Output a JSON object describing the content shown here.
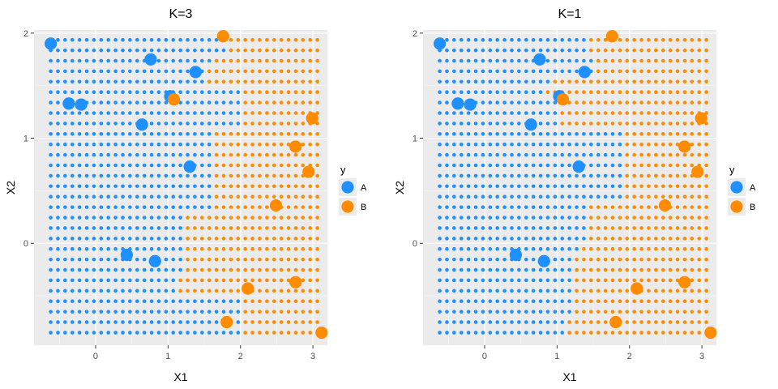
{
  "colors": {
    "A": "#1e90ff",
    "B": "#ff8c00",
    "panel": "#ebebeb",
    "grid_major": "#ffffff",
    "tick_text": "#4d4d4d"
  },
  "chart_data": [
    {
      "type": "scatter",
      "title": "K=3",
      "xlabel": "X1",
      "ylabel": "X2",
      "xlim": [
        -0.85,
        3.2
      ],
      "ylim": [
        -0.97,
        2.03
      ],
      "x_ticks": [
        0,
        1,
        2,
        3
      ],
      "y_ticks": [
        0,
        1,
        2
      ],
      "x_tick_labels": [
        "0",
        "1",
        "2",
        "3"
      ],
      "y_tick_labels": [
        "0",
        "1",
        "2"
      ],
      "grid": true,
      "legend": {
        "title": "y",
        "position": "right",
        "entries": [
          "A",
          "B"
        ]
      },
      "background_grid": {
        "x_start": -0.62,
        "x_step": 0.0995,
        "x_count": 38,
        "y_start": -0.85,
        "y_step": 0.0995,
        "y_count": 29,
        "boundary_by_row": [
          2.05,
          2.05,
          2.05,
          2.05,
          1.15,
          1.15,
          1.25,
          1.25,
          1.25,
          1.25,
          1.25,
          1.25,
          1.65,
          1.65,
          1.65,
          1.65,
          1.65,
          1.65,
          1.65,
          1.65,
          2.05,
          2.05,
          2.05,
          2.05,
          1.55,
          1.55,
          1.65,
          1.85,
          1.85
        ],
        "boundary_comment": "x value where class switches from A to B for each grid row"
      },
      "series": [
        {
          "name": "A",
          "points": [
            [
              -0.62,
              1.9
            ],
            [
              -0.37,
              1.33
            ],
            [
              -0.2,
              1.32
            ],
            [
              0.64,
              1.13
            ],
            [
              0.76,
              1.75
            ],
            [
              1.03,
              1.4
            ],
            [
              1.38,
              1.63
            ],
            [
              1.3,
              0.73
            ],
            [
              0.43,
              -0.11
            ],
            [
              0.82,
              -0.17
            ]
          ]
        },
        {
          "name": "B",
          "points": [
            [
              1.76,
              1.97
            ],
            [
              1.08,
              1.37
            ],
            [
              2.99,
              1.19
            ],
            [
              2.76,
              0.92
            ],
            [
              2.94,
              0.68
            ],
            [
              2.49,
              0.36
            ],
            [
              2.76,
              -0.37
            ],
            [
              2.1,
              -0.43
            ],
            [
              1.81,
              -0.75
            ],
            [
              3.12,
              -0.85
            ]
          ]
        }
      ]
    },
    {
      "type": "scatter",
      "title": "K=1",
      "xlabel": "X1",
      "ylabel": "X2",
      "xlim": [
        -0.85,
        3.2
      ],
      "ylim": [
        -0.97,
        2.03
      ],
      "x_ticks": [
        0,
        1,
        2,
        3
      ],
      "y_ticks": [
        0,
        1,
        2
      ],
      "x_tick_labels": [
        "0",
        "1",
        "2",
        "3"
      ],
      "y_tick_labels": [
        "0",
        "1",
        "2"
      ],
      "grid": true,
      "legend": {
        "title": "y",
        "position": "right",
        "entries": [
          "A",
          "B"
        ]
      },
      "background_grid": {
        "x_start": -0.62,
        "x_step": 0.0995,
        "x_count": 38,
        "y_start": -0.85,
        "y_step": 0.0995,
        "y_count": 29,
        "boundary_by_row": [
          1.15,
          1.15,
          1.25,
          1.25,
          1.25,
          1.25,
          1.25,
          1.25,
          1.35,
          1.45,
          1.45,
          1.45,
          1.45,
          1.95,
          1.95,
          1.95,
          1.95,
          1.95,
          1.95,
          1.95,
          1.0,
          1.0,
          1.0,
          0.8,
          0.9,
          1.55,
          1.55,
          1.45,
          1.45
        ],
        "boundary_comment": "x value where class switches from A to B for each grid row"
      },
      "series": [
        {
          "name": "A",
          "points": [
            [
              -0.62,
              1.9
            ],
            [
              -0.37,
              1.33
            ],
            [
              -0.2,
              1.32
            ],
            [
              0.64,
              1.13
            ],
            [
              0.76,
              1.75
            ],
            [
              1.03,
              1.4
            ],
            [
              1.38,
              1.63
            ],
            [
              1.3,
              0.73
            ],
            [
              0.43,
              -0.11
            ],
            [
              0.82,
              -0.17
            ]
          ]
        },
        {
          "name": "B",
          "points": [
            [
              1.76,
              1.97
            ],
            [
              1.08,
              1.37
            ],
            [
              2.99,
              1.19
            ],
            [
              2.76,
              0.92
            ],
            [
              2.94,
              0.68
            ],
            [
              2.49,
              0.36
            ],
            [
              2.76,
              -0.37
            ],
            [
              2.1,
              -0.43
            ],
            [
              1.81,
              -0.75
            ],
            [
              3.12,
              -0.85
            ]
          ]
        }
      ]
    }
  ]
}
